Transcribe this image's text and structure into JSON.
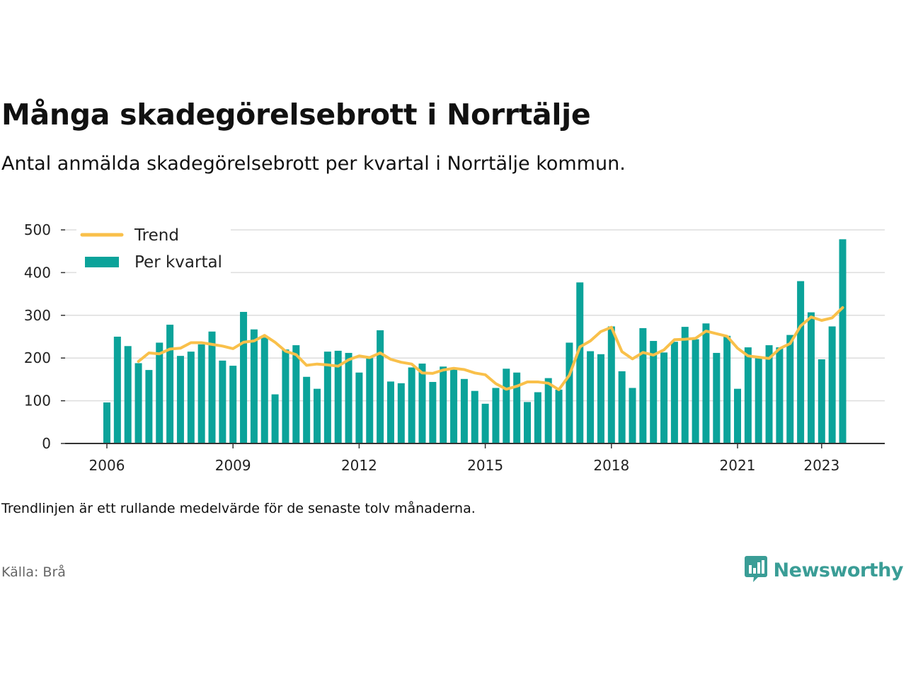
{
  "title": "Många skadegörelsebrott i Norrtälje",
  "subtitle": "Antal anmälda skadegörelsebrott per kvartal i Norrtälje kommun.",
  "note": "Trendlinjen är ett rullande medelvärde för de senaste tolv månaderna.",
  "source": "Källa: Brå",
  "brand": "Newsworthy",
  "colors": {
    "bar": "#0ba39a",
    "trend": "#f9c04a",
    "grid": "#dddddd",
    "axis": "#333333",
    "brand": "#3a9d96"
  },
  "icons": {
    "brand": "newsworthy-logo-icon"
  },
  "chart_data": {
    "type": "bar",
    "ylim": [
      0,
      500
    ],
    "yticks": [
      0,
      100,
      200,
      300,
      400,
      500
    ],
    "xticks": [
      "2006",
      "2009",
      "2012",
      "2015",
      "2018",
      "2021",
      "2023"
    ],
    "legend": {
      "position": "top-left",
      "entries": [
        "Trend",
        "Per kvartal"
      ]
    },
    "grid": true,
    "categories": [
      "2006 Q1",
      "2006 Q2",
      "2006 Q3",
      "2006 Q4",
      "2007 Q1",
      "2007 Q2",
      "2007 Q3",
      "2007 Q4",
      "2008 Q1",
      "2008 Q2",
      "2008 Q3",
      "2008 Q4",
      "2009 Q1",
      "2009 Q2",
      "2009 Q3",
      "2009 Q4",
      "2010 Q1",
      "2010 Q2",
      "2010 Q3",
      "2010 Q4",
      "2011 Q1",
      "2011 Q2",
      "2011 Q3",
      "2011 Q4",
      "2012 Q1",
      "2012 Q2",
      "2012 Q3",
      "2012 Q4",
      "2013 Q1",
      "2013 Q2",
      "2013 Q3",
      "2013 Q4",
      "2014 Q1",
      "2014 Q2",
      "2014 Q3",
      "2014 Q4",
      "2015 Q1",
      "2015 Q2",
      "2015 Q3",
      "2015 Q4",
      "2016 Q1",
      "2016 Q2",
      "2016 Q3",
      "2016 Q4",
      "2017 Q1",
      "2017 Q2",
      "2017 Q3",
      "2017 Q4",
      "2018 Q1",
      "2018 Q2",
      "2018 Q3",
      "2018 Q4",
      "2019 Q1",
      "2019 Q2",
      "2019 Q3",
      "2019 Q4",
      "2020 Q1",
      "2020 Q2",
      "2020 Q3",
      "2020 Q4",
      "2021 Q1",
      "2021 Q2",
      "2021 Q3",
      "2021 Q4",
      "2022 Q1",
      "2022 Q2",
      "2022 Q3",
      "2022 Q4",
      "2023 Q1",
      "2023 Q2",
      "2023 Q3"
    ],
    "series": [
      {
        "name": "Per kvartal",
        "type": "bar",
        "values": [
          96,
          250,
          228,
          188,
          172,
          236,
          278,
          205,
          215,
          232,
          262,
          194,
          182,
          308,
          267,
          248,
          115,
          220,
          230,
          156,
          128,
          215,
          217,
          212,
          166,
          200,
          265,
          145,
          141,
          178,
          187,
          144,
          180,
          173,
          151,
          123,
          93,
          130,
          175,
          166,
          97,
          120,
          153,
          126,
          236,
          377,
          216,
          209,
          274,
          169,
          130,
          270,
          240,
          213,
          238,
          273,
          244,
          281,
          212,
          252,
          128,
          225,
          202,
          230,
          225,
          254,
          380,
          307,
          197,
          274,
          478
        ]
      },
      {
        "name": "Trend",
        "type": "line",
        "values": [
          null,
          null,
          null,
          192,
          212,
          210,
          221,
          223,
          236,
          236,
          232,
          228,
          222,
          237,
          240,
          253,
          237,
          216,
          208,
          183,
          186,
          184,
          181,
          196,
          205,
          201,
          212,
          197,
          190,
          186,
          165,
          164,
          172,
          176,
          173,
          165,
          161,
          140,
          127,
          134,
          144,
          144,
          141,
          126,
          160,
          226,
          240,
          262,
          272,
          215,
          198,
          213,
          207,
          219,
          243,
          244,
          246,
          263,
          257,
          251,
          223,
          205,
          202,
          199,
          222,
          234,
          275,
          296,
          288,
          294,
          318
        ]
      }
    ]
  }
}
